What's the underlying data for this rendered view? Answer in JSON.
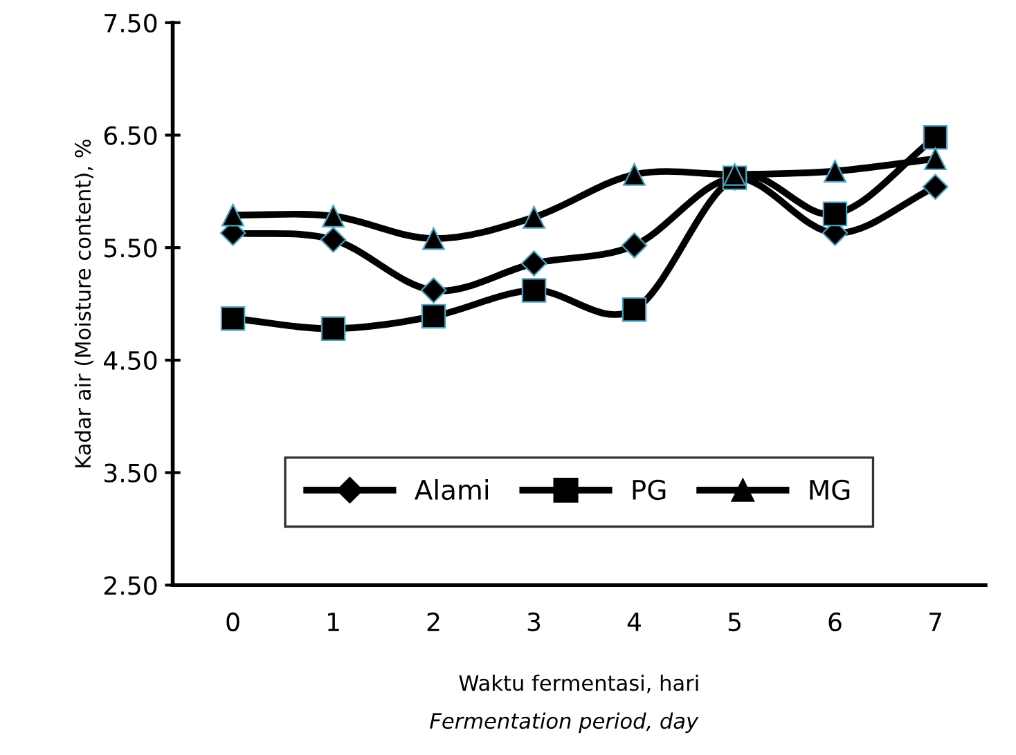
{
  "chart_data": {
    "type": "line",
    "categories": [
      "0",
      "1",
      "2",
      "3",
      "4",
      "5",
      "6",
      "7"
    ],
    "series": [
      {
        "name": "Alami",
        "color": "#000000",
        "marker": "diamond",
        "values": [
          5.63,
          5.57,
          5.12,
          5.36,
          5.52,
          6.12,
          5.63,
          6.04
        ]
      },
      {
        "name": "PG",
        "color": "#000000",
        "marker": "square",
        "values": [
          4.87,
          4.78,
          4.89,
          5.12,
          4.95,
          6.12,
          5.8,
          6.48
        ]
      },
      {
        "name": "MG",
        "color": "#000000",
        "marker": "triangle",
        "values": [
          5.79,
          5.78,
          5.58,
          5.77,
          6.15,
          6.15,
          6.18,
          6.29
        ]
      }
    ],
    "ylim": [
      2.5,
      7.5
    ],
    "yticks": [
      {
        "value": 2.5,
        "label": "2.50"
      },
      {
        "value": 3.5,
        "label": "3.50"
      },
      {
        "value": 4.5,
        "label": "4.50"
      },
      {
        "value": 5.5,
        "label": "5.50"
      },
      {
        "value": 6.5,
        "label": "6.50"
      },
      {
        "value": 7.5,
        "label": "7.50"
      }
    ],
    "ylabel": "Kadar air (Moisture content), %",
    "xlabel": "Waktu fermentasi, hari",
    "annotations": [
      "Fermentation period, day"
    ],
    "legend": "bottom",
    "grid": false,
    "line_style": "solid"
  }
}
